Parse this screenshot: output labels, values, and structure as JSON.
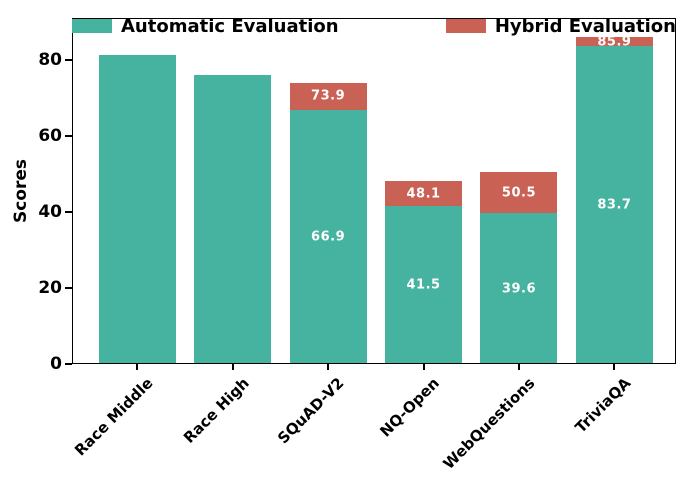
{
  "chart_data": {
    "type": "bar",
    "title": "",
    "xlabel": "",
    "ylabel": "Scores",
    "ylim": [
      0,
      91
    ],
    "yticks": [
      0,
      20,
      40,
      60,
      80
    ],
    "grid": false,
    "legend_position": "top, expanded across plot width",
    "categories": [
      "Race Middle",
      "Race High",
      "SQuAD-V2",
      "NQ-Open",
      "WebQuestions",
      "TriviaQA"
    ],
    "series": [
      {
        "name": "Automatic Evaluation",
        "color": "#45b3a0",
        "values": [
          81.3,
          75.9,
          66.9,
          41.5,
          39.6,
          83.7
        ],
        "value_labels": [
          null,
          null,
          "66.9",
          "41.5",
          "39.6",
          "83.7"
        ]
      },
      {
        "name": "Hybrid Evaluation",
        "color": "#c96254",
        "values": [
          null,
          null,
          73.9,
          48.1,
          50.5,
          85.9
        ],
        "value_labels": [
          null,
          null,
          "73.9",
          "48.1",
          "50.5",
          "85.9"
        ]
      }
    ],
    "value_label_color": "#ffffff",
    "axis_color": "#000000"
  }
}
